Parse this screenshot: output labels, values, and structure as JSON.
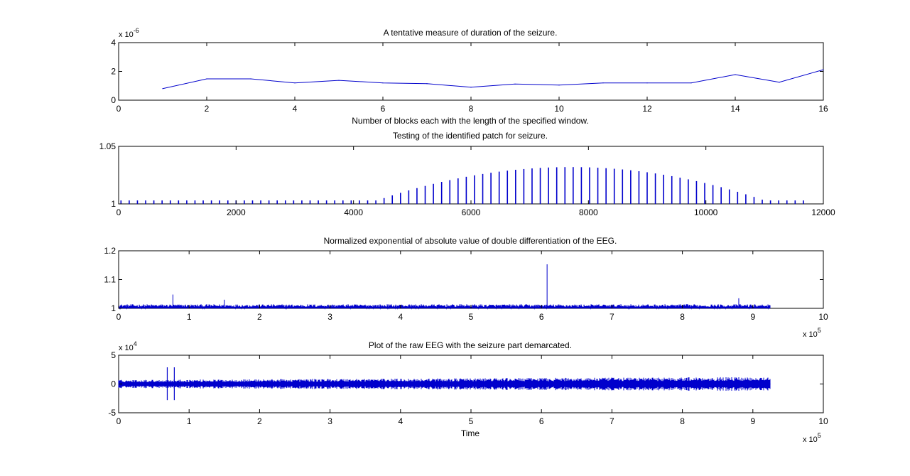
{
  "figure": {
    "line_color": "#0000cc",
    "background": "#ffffff",
    "axes_color": "#000000"
  },
  "chart_data": [
    {
      "type": "line",
      "title": "A tentative measure of duration of the seizure.",
      "xlabel": "Number of blocks each with the length of the specified window.",
      "ylabel": "",
      "xlim": [
        0,
        16
      ],
      "ylim": [
        0,
        4e-06
      ],
      "xticks": [
        0,
        2,
        4,
        6,
        8,
        10,
        12,
        14,
        16
      ],
      "xtick_labels": [
        "0",
        "2",
        "4",
        "6",
        "8",
        "10",
        "12",
        "14",
        "16"
      ],
      "yticks": [
        0,
        2e-06,
        4e-06
      ],
      "ytick_labels": [
        "0",
        "2",
        "4"
      ],
      "y_multiplier_base": "x 10",
      "y_multiplier_exp": "-6",
      "series": [
        {
          "x": [
            1,
            2,
            3,
            4,
            5,
            6,
            7,
            8,
            9,
            10,
            11,
            12,
            13,
            14,
            15,
            16
          ],
          "values": [
            8e-07,
            1.48e-06,
            1.48e-06,
            1.2e-06,
            1.38e-06,
            1.2e-06,
            1.15e-06,
            9e-07,
            1.12e-06,
            1.05e-06,
            1.2e-06,
            1.2e-06,
            1.2e-06,
            1.78e-06,
            1.25e-06,
            2.12e-06
          ]
        }
      ]
    },
    {
      "type": "bar",
      "title": "Testing of the identified patch for seizure.",
      "xlabel": "",
      "ylabel": "",
      "xlim": [
        0,
        12000
      ],
      "ylim": [
        1,
        1.05
      ],
      "xticks": [
        0,
        2000,
        4000,
        6000,
        8000,
        10000,
        12000
      ],
      "xtick_labels": [
        "0",
        "2000",
        "4000",
        "6000",
        "8000",
        "10000",
        "12000"
      ],
      "yticks": [
        1,
        1.05
      ],
      "ytick_labels": [
        "1",
        "1.05"
      ],
      "spike_spacing": 140,
      "spike_first_x": 40,
      "spike_count": 84,
      "baseline_level": 1.003,
      "peak_level": 1.032,
      "peak_center_x": 7700,
      "peak_half_width": 3300
    },
    {
      "type": "line",
      "title": "Normalized exponential of absolute value of double differentiation of the EEG.",
      "xlabel": "",
      "ylabel": "",
      "xlim": [
        0,
        1000000
      ],
      "ylim": [
        1,
        1.2
      ],
      "xticks": [
        0,
        100000,
        200000,
        300000,
        400000,
        500000,
        600000,
        700000,
        800000,
        900000,
        1000000
      ],
      "xtick_labels": [
        "0",
        "1",
        "2",
        "3",
        "4",
        "5",
        "6",
        "7",
        "8",
        "9",
        "10"
      ],
      "yticks": [
        1,
        1.1,
        1.2
      ],
      "ytick_labels": [
        "1",
        "1.1",
        "1.2"
      ],
      "x_multiplier_base": "x 10",
      "x_multiplier_exp": "5",
      "signal_end_x": 925000,
      "noise_level": 1.01,
      "spikes": [
        {
          "x": 77000,
          "value": 1.048
        },
        {
          "x": 608000,
          "value": 1.153
        },
        {
          "x": 150000,
          "value": 1.03
        },
        {
          "x": 880000,
          "value": 1.035
        }
      ]
    },
    {
      "type": "line",
      "title": "Plot of the raw EEG with the seizure part demarcated.",
      "xlabel": "Time",
      "ylabel": "",
      "xlim": [
        0,
        1000000
      ],
      "ylim": [
        -50000,
        50000
      ],
      "xticks": [
        0,
        100000,
        200000,
        300000,
        400000,
        500000,
        600000,
        700000,
        800000,
        900000,
        1000000
      ],
      "xtick_labels": [
        "0",
        "1",
        "2",
        "3",
        "4",
        "5",
        "6",
        "7",
        "8",
        "9",
        "10"
      ],
      "yticks": [
        -50000,
        0,
        50000
      ],
      "ytick_labels": [
        "-5",
        "0",
        "5"
      ],
      "y_multiplier_base": "x 10",
      "y_multiplier_exp": "4",
      "x_multiplier_base": "x 10",
      "x_multiplier_exp": "5",
      "signal_end_x": 925000,
      "noise_amplitude": 8000,
      "markers": [
        {
          "x": 69000,
          "low": -28000,
          "high": 29000
        },
        {
          "x": 79000,
          "low": -28000,
          "high": 29000
        }
      ]
    }
  ]
}
